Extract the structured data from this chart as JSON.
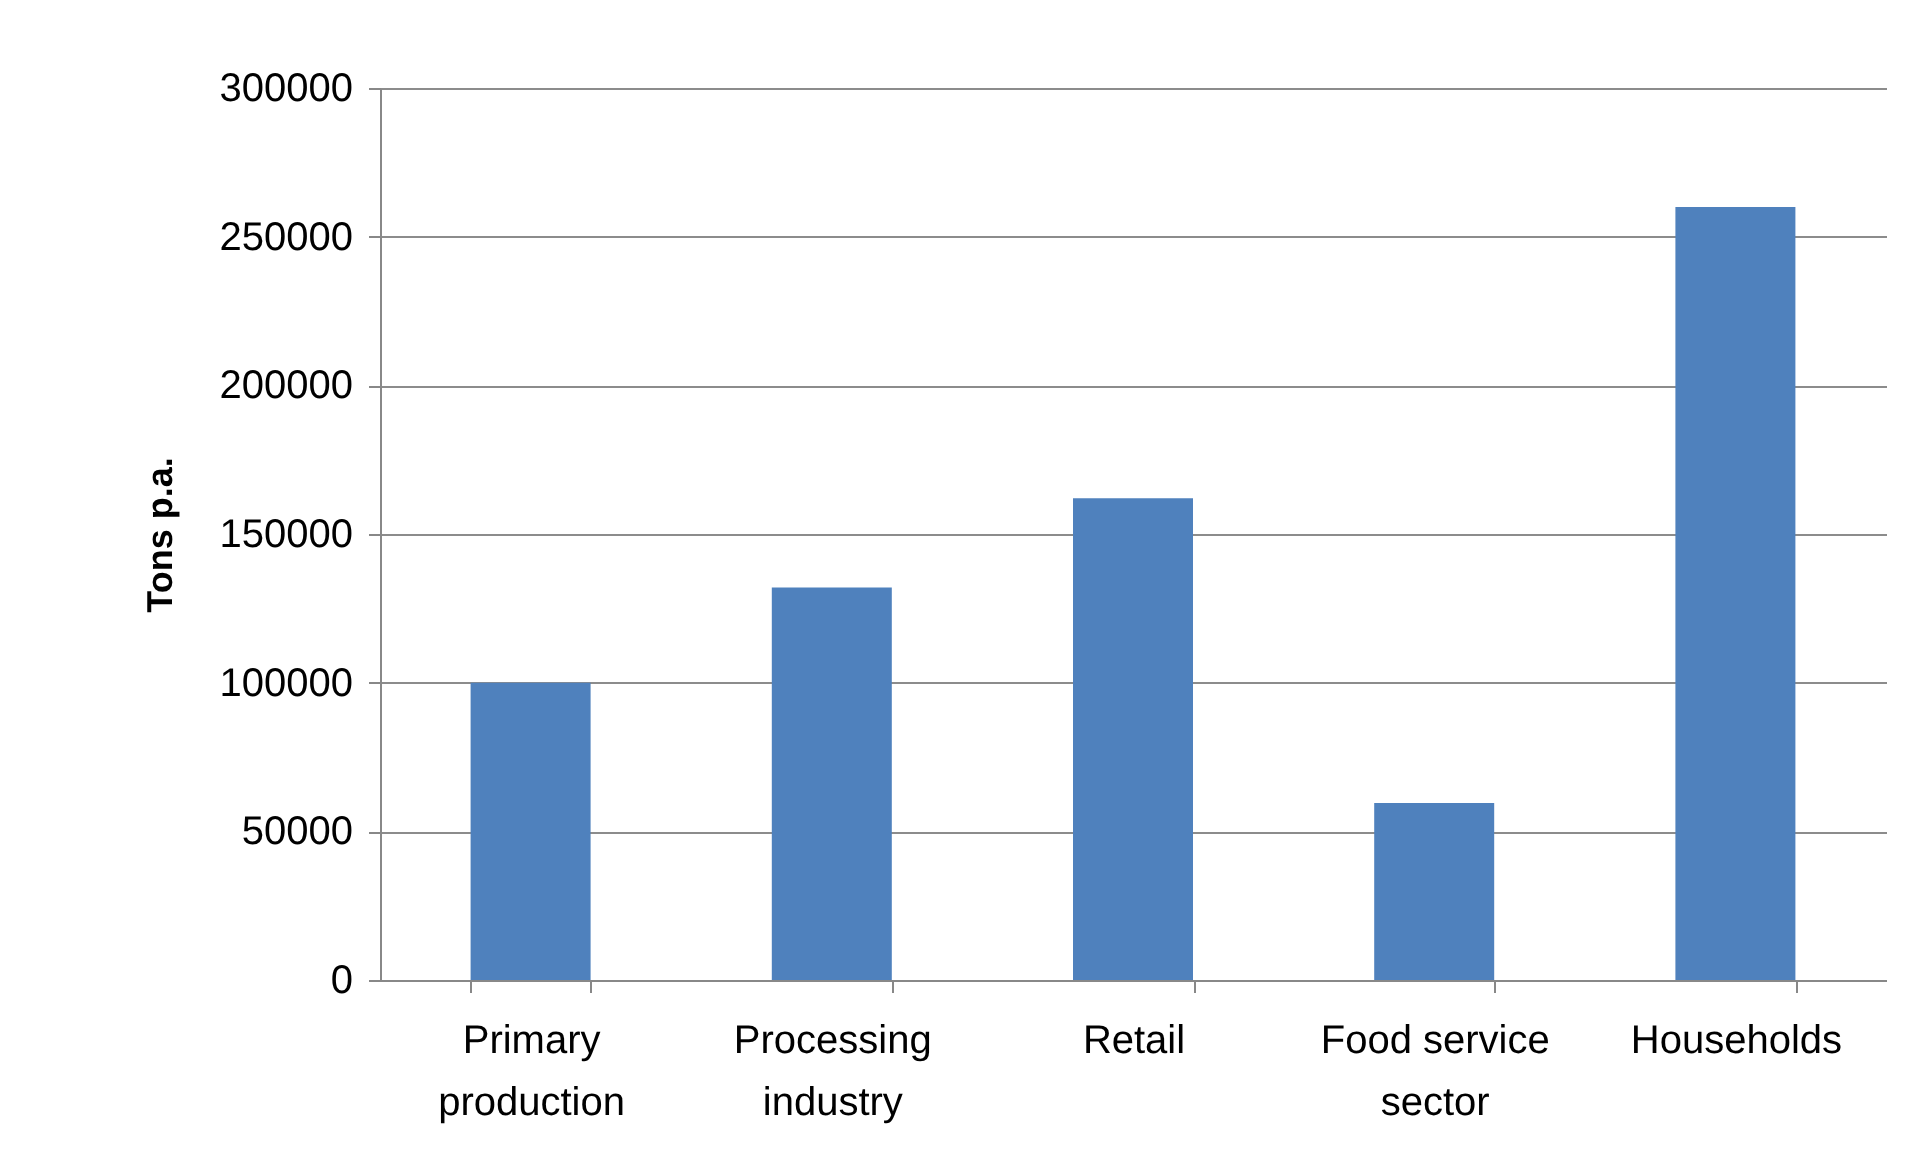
{
  "chart_data": {
    "type": "bar",
    "ylabel": "Tons p.a.",
    "categories": [
      "Primary production",
      "Processing industry",
      "Retail",
      "Food service sector",
      "Households"
    ],
    "values": [
      100000,
      132000,
      162000,
      59500,
      260000
    ],
    "color": "#4f81bd",
    "ylim": [
      0,
      300000
    ],
    "yticks": [
      0,
      50000,
      100000,
      150000,
      200000,
      250000,
      300000
    ],
    "grid": "y"
  }
}
